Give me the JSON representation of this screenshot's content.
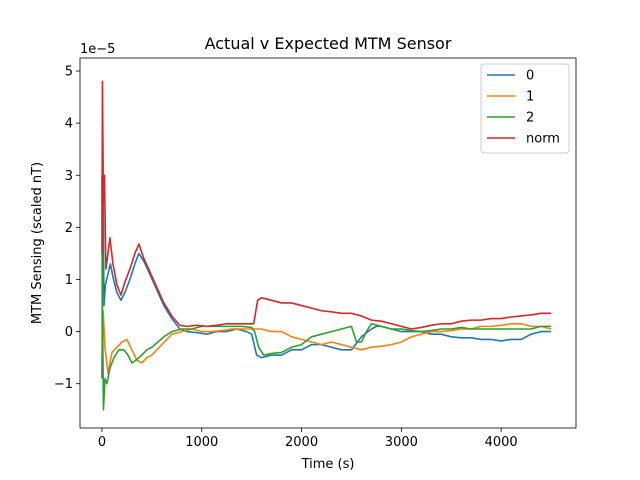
{
  "chart_data": {
    "type": "line",
    "title": "Actual v Expected MTM Sensor",
    "xlabel": "Time (s)",
    "ylabel": "MTM Sensing (scaled nT)",
    "y_offset_label": "1e−5",
    "xlim": [
      -220,
      4750
    ],
    "ylim": [
      -1.85,
      5.25
    ],
    "x_ticks": [
      0,
      1000,
      2000,
      3000,
      4000
    ],
    "x_tick_labels": [
      "0",
      "1000",
      "2000",
      "3000",
      "4000"
    ],
    "y_ticks": [
      -1,
      0,
      1,
      2,
      3,
      4,
      5
    ],
    "y_tick_labels": [
      "−1",
      "0",
      "1",
      "2",
      "3",
      "4",
      "5"
    ],
    "grid": false,
    "legend_position": "top-right",
    "series": [
      {
        "name": "0",
        "color": "#1f77b4",
        "points": [
          [
            0,
            -0.9
          ],
          [
            8,
            4.0
          ],
          [
            20,
            0.5
          ],
          [
            35,
            0.9
          ],
          [
            60,
            1.1
          ],
          [
            85,
            1.3
          ],
          [
            110,
            1.05
          ],
          [
            150,
            0.75
          ],
          [
            190,
            0.6
          ],
          [
            230,
            0.75
          ],
          [
            280,
            1.0
          ],
          [
            330,
            1.3
          ],
          [
            370,
            1.5
          ],
          [
            420,
            1.35
          ],
          [
            480,
            1.1
          ],
          [
            550,
            0.8
          ],
          [
            620,
            0.5
          ],
          [
            700,
            0.25
          ],
          [
            780,
            0.05
          ],
          [
            850,
            0.0
          ],
          [
            950,
            -0.02
          ],
          [
            1050,
            -0.05
          ],
          [
            1150,
            0.0
          ],
          [
            1250,
            0.0
          ],
          [
            1350,
            0.05
          ],
          [
            1450,
            0.0
          ],
          [
            1500,
            -0.05
          ],
          [
            1550,
            -0.45
          ],
          [
            1600,
            -0.5
          ],
          [
            1700,
            -0.45
          ],
          [
            1800,
            -0.45
          ],
          [
            1900,
            -0.35
          ],
          [
            2000,
            -0.35
          ],
          [
            2100,
            -0.25
          ],
          [
            2200,
            -0.25
          ],
          [
            2300,
            -0.3
          ],
          [
            2400,
            -0.35
          ],
          [
            2500,
            -0.35
          ],
          [
            2600,
            -0.1
          ],
          [
            2700,
            0.05
          ],
          [
            2750,
            0.1
          ],
          [
            2800,
            0.1
          ],
          [
            2900,
            0.05
          ],
          [
            3000,
            0.0
          ],
          [
            3100,
            0.0
          ],
          [
            3200,
            0.0
          ],
          [
            3300,
            -0.05
          ],
          [
            3400,
            -0.05
          ],
          [
            3500,
            -0.1
          ],
          [
            3600,
            -0.12
          ],
          [
            3700,
            -0.12
          ],
          [
            3800,
            -0.15
          ],
          [
            3900,
            -0.15
          ],
          [
            4000,
            -0.18
          ],
          [
            4100,
            -0.15
          ],
          [
            4200,
            -0.15
          ],
          [
            4300,
            -0.05
          ],
          [
            4400,
            0.0
          ],
          [
            4500,
            0.0
          ]
        ]
      },
      {
        "name": "1",
        "color": "#ff7f0e",
        "points": [
          [
            0,
            1.5
          ],
          [
            5,
            -0.5
          ],
          [
            12,
            0.4
          ],
          [
            30,
            -0.3
          ],
          [
            60,
            -0.8
          ],
          [
            100,
            -0.4
          ],
          [
            150,
            -0.3
          ],
          [
            200,
            -0.2
          ],
          [
            250,
            -0.15
          ],
          [
            300,
            -0.35
          ],
          [
            350,
            -0.55
          ],
          [
            400,
            -0.6
          ],
          [
            450,
            -0.5
          ],
          [
            500,
            -0.45
          ],
          [
            550,
            -0.35
          ],
          [
            600,
            -0.25
          ],
          [
            700,
            -0.05
          ],
          [
            800,
            0.0
          ],
          [
            900,
            0.05
          ],
          [
            1000,
            0.0
          ],
          [
            1100,
            0.0
          ],
          [
            1200,
            0.02
          ],
          [
            1300,
            0.05
          ],
          [
            1400,
            0.05
          ],
          [
            1500,
            0.05
          ],
          [
            1600,
            0.05
          ],
          [
            1700,
            0.0
          ],
          [
            1800,
            0.0
          ],
          [
            1900,
            -0.1
          ],
          [
            2000,
            -0.15
          ],
          [
            2100,
            -0.2
          ],
          [
            2200,
            -0.25
          ],
          [
            2300,
            -0.2
          ],
          [
            2400,
            -0.25
          ],
          [
            2500,
            -0.3
          ],
          [
            2600,
            -0.35
          ],
          [
            2700,
            -0.3
          ],
          [
            2800,
            -0.28
          ],
          [
            2900,
            -0.25
          ],
          [
            3000,
            -0.2
          ],
          [
            3100,
            -0.1
          ],
          [
            3200,
            -0.05
          ],
          [
            3300,
            0.0
          ],
          [
            3400,
            0.0
          ],
          [
            3500,
            0.02
          ],
          [
            3600,
            0.05
          ],
          [
            3700,
            0.05
          ],
          [
            3800,
            0.1
          ],
          [
            3900,
            0.1
          ],
          [
            4000,
            0.12
          ],
          [
            4100,
            0.15
          ],
          [
            4200,
            0.15
          ],
          [
            4300,
            0.1
          ],
          [
            4400,
            0.1
          ],
          [
            4500,
            0.05
          ]
        ]
      },
      {
        "name": "2",
        "color": "#2ca02c",
        "points": [
          [
            0,
            3.0
          ],
          [
            6,
            0.3
          ],
          [
            15,
            -1.5
          ],
          [
            30,
            -0.9
          ],
          [
            50,
            -1.0
          ],
          [
            80,
            -0.7
          ],
          [
            120,
            -0.5
          ],
          [
            170,
            -0.35
          ],
          [
            220,
            -0.35
          ],
          [
            260,
            -0.45
          ],
          [
            300,
            -0.6
          ],
          [
            340,
            -0.55
          ],
          [
            400,
            -0.45
          ],
          [
            450,
            -0.35
          ],
          [
            500,
            -0.3
          ],
          [
            560,
            -0.2
          ],
          [
            620,
            -0.1
          ],
          [
            700,
            0.0
          ],
          [
            800,
            0.05
          ],
          [
            900,
            0.05
          ],
          [
            1000,
            0.1
          ],
          [
            1100,
            0.1
          ],
          [
            1200,
            0.1
          ],
          [
            1300,
            0.1
          ],
          [
            1400,
            0.1
          ],
          [
            1500,
            0.08
          ],
          [
            1530,
            0.0
          ],
          [
            1570,
            -0.3
          ],
          [
            1620,
            -0.45
          ],
          [
            1700,
            -0.42
          ],
          [
            1800,
            -0.4
          ],
          [
            1900,
            -0.3
          ],
          [
            2000,
            -0.25
          ],
          [
            2100,
            -0.1
          ],
          [
            2200,
            -0.05
          ],
          [
            2300,
            0.0
          ],
          [
            2400,
            0.05
          ],
          [
            2500,
            0.1
          ],
          [
            2550,
            -0.2
          ],
          [
            2600,
            -0.2
          ],
          [
            2650,
            0.0
          ],
          [
            2700,
            0.15
          ],
          [
            2800,
            0.1
          ],
          [
            2900,
            0.05
          ],
          [
            3000,
            0.05
          ],
          [
            3100,
            0.02
          ],
          [
            3200,
            0.0
          ],
          [
            3300,
            0.02
          ],
          [
            3400,
            0.05
          ],
          [
            3500,
            0.05
          ],
          [
            3600,
            0.08
          ],
          [
            3700,
            0.05
          ],
          [
            3800,
            0.05
          ],
          [
            3900,
            0.05
          ],
          [
            4000,
            0.05
          ],
          [
            4100,
            0.05
          ],
          [
            4200,
            0.05
          ],
          [
            4300,
            0.05
          ],
          [
            4400,
            0.1
          ],
          [
            4500,
            0.1
          ]
        ]
      },
      {
        "name": "norm",
        "color": "#d62728",
        "points": [
          [
            0,
            1.5
          ],
          [
            5,
            4.8
          ],
          [
            12,
            2.5
          ],
          [
            25,
            3.0
          ],
          [
            40,
            1.2
          ],
          [
            60,
            1.5
          ],
          [
            80,
            1.8
          ],
          [
            110,
            1.3
          ],
          [
            150,
            0.9
          ],
          [
            190,
            0.7
          ],
          [
            230,
            0.95
          ],
          [
            280,
            1.2
          ],
          [
            330,
            1.5
          ],
          [
            370,
            1.68
          ],
          [
            420,
            1.4
          ],
          [
            480,
            1.15
          ],
          [
            550,
            0.85
          ],
          [
            620,
            0.55
          ],
          [
            700,
            0.3
          ],
          [
            780,
            0.12
          ],
          [
            850,
            0.1
          ],
          [
            950,
            0.12
          ],
          [
            1050,
            0.1
          ],
          [
            1150,
            0.12
          ],
          [
            1250,
            0.15
          ],
          [
            1350,
            0.15
          ],
          [
            1450,
            0.15
          ],
          [
            1520,
            0.15
          ],
          [
            1560,
            0.6
          ],
          [
            1600,
            0.65
          ],
          [
            1700,
            0.6
          ],
          [
            1800,
            0.55
          ],
          [
            1900,
            0.55
          ],
          [
            2000,
            0.5
          ],
          [
            2100,
            0.45
          ],
          [
            2200,
            0.4
          ],
          [
            2300,
            0.38
          ],
          [
            2400,
            0.35
          ],
          [
            2500,
            0.35
          ],
          [
            2600,
            0.3
          ],
          [
            2700,
            0.22
          ],
          [
            2800,
            0.2
          ],
          [
            2900,
            0.15
          ],
          [
            3000,
            0.1
          ],
          [
            3100,
            0.05
          ],
          [
            3200,
            0.08
          ],
          [
            3300,
            0.12
          ],
          [
            3400,
            0.15
          ],
          [
            3500,
            0.15
          ],
          [
            3600,
            0.2
          ],
          [
            3700,
            0.22
          ],
          [
            3800,
            0.22
          ],
          [
            3900,
            0.25
          ],
          [
            4000,
            0.25
          ],
          [
            4100,
            0.28
          ],
          [
            4200,
            0.3
          ],
          [
            4300,
            0.32
          ],
          [
            4400,
            0.35
          ],
          [
            4500,
            0.35
          ]
        ]
      }
    ]
  }
}
